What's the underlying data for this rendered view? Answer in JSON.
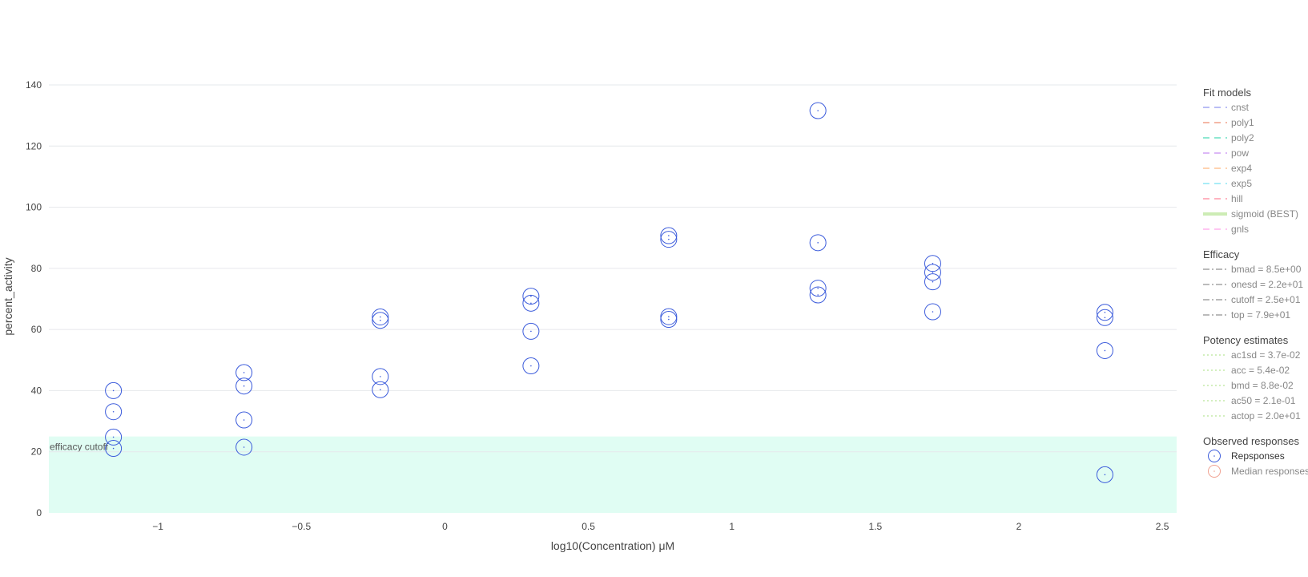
{
  "chart_data": {
    "type": "scatter",
    "xlabel": "log10(Concentration) μM",
    "ylabel": "percent_activity",
    "xlim": [
      -1.38,
      2.55
    ],
    "ylim": [
      0,
      140
    ],
    "x_ticks": [
      {
        "value": -1,
        "label": "−1"
      },
      {
        "value": -0.5,
        "label": "−0.5"
      },
      {
        "value": 0,
        "label": "0"
      },
      {
        "value": 0.5,
        "label": "0.5"
      },
      {
        "value": 1,
        "label": "1"
      },
      {
        "value": 1.5,
        "label": "1.5"
      },
      {
        "value": 2,
        "label": "2"
      },
      {
        "value": 2.5,
        "label": "2.5"
      }
    ],
    "y_ticks": [
      {
        "value": 0,
        "label": "0"
      },
      {
        "value": 20,
        "label": "20"
      },
      {
        "value": 40,
        "label": "40"
      },
      {
        "value": 60,
        "label": "60"
      },
      {
        "value": 80,
        "label": "80"
      },
      {
        "value": 100,
        "label": "100"
      },
      {
        "value": 120,
        "label": "120"
      },
      {
        "value": 140,
        "label": "140"
      }
    ],
    "grid": "horizontal",
    "legend_position": "right",
    "efficacy_cutoff": {
      "value": 25,
      "label": "efficacy cutoff",
      "color": "#e0fdf3"
    },
    "series": [
      {
        "name": "Repsponses",
        "color": "#3b5bdb",
        "x": [
          -1.155,
          -1.155,
          -1.155,
          -1.155,
          -0.7,
          -0.7,
          -0.7,
          -0.7,
          -0.225,
          -0.225,
          -0.225,
          -0.225,
          0.3,
          0.3,
          0.3,
          0.3,
          0.78,
          0.78,
          0.78,
          0.78,
          1.3,
          1.3,
          1.3,
          1.3,
          1.7,
          1.7,
          1.7,
          1.7,
          2.3,
          2.3,
          2.3,
          2.3
        ],
        "y": [
          40.0,
          33.1,
          24.8,
          21.1,
          45.9,
          41.5,
          30.4,
          21.5,
          64.1,
          63.0,
          44.6,
          40.3,
          70.9,
          68.6,
          59.4,
          48.1,
          90.7,
          89.5,
          64.2,
          63.3,
          131.6,
          88.4,
          73.5,
          71.3,
          81.6,
          78.7,
          75.6,
          65.8,
          65.6,
          63.9,
          53.1,
          12.5
        ]
      }
    ],
    "legend_groups": [
      {
        "title": "Fit models",
        "items": [
          {
            "label": "cnst",
            "color": "#b9bdf5",
            "style": "dash"
          },
          {
            "label": "poly1",
            "color": "#f4b7a6",
            "style": "dash"
          },
          {
            "label": "poly2",
            "color": "#8fe8d2",
            "style": "dash"
          },
          {
            "label": "pow",
            "color": "#dcb8f7",
            "style": "dash"
          },
          {
            "label": "exp4",
            "color": "#ffd3b0",
            "style": "dash"
          },
          {
            "label": "exp5",
            "color": "#a9ecf7",
            "style": "dash"
          },
          {
            "label": "hill",
            "color": "#ffb3c0",
            "style": "dash"
          },
          {
            "label": "sigmoid (BEST)",
            "color": "#cdecb5",
            "style": "solid"
          },
          {
            "label": "gnls",
            "color": "#ffc6f2",
            "style": "dash"
          }
        ]
      },
      {
        "title": "Efficacy",
        "items": [
          {
            "label": "bmad = 8.5e+00",
            "color": "#bbbbbb",
            "style": "dashdot"
          },
          {
            "label": "onesd = 2.2e+01",
            "color": "#bbbbbb",
            "style": "dashdot"
          },
          {
            "label": "cutoff = 2.5e+01",
            "color": "#bbbbbb",
            "style": "dashdot"
          },
          {
            "label": "top = 7.9e+01",
            "color": "#bbbbbb",
            "style": "dashdot"
          }
        ]
      },
      {
        "title": "Potency estimates",
        "items": [
          {
            "label": "ac1sd = 3.7e-02",
            "color": "#d3efbf",
            "style": "dot"
          },
          {
            "label": "acc = 5.4e-02",
            "color": "#d3efbf",
            "style": "dot"
          },
          {
            "label": "bmd = 8.8e-02",
            "color": "#d3efbf",
            "style": "dot"
          },
          {
            "label": "ac50 = 2.1e-01",
            "color": "#d3efbf",
            "style": "dot"
          },
          {
            "label": "actop = 2.0e+01",
            "color": "#d3efbf",
            "style": "dot"
          }
        ]
      },
      {
        "title": "Observed responses",
        "items": [
          {
            "label": "Repsponses",
            "color": "#3b5bdb",
            "style": "marker",
            "active": true
          },
          {
            "label": "Median responses",
            "color": "#f0a090",
            "style": "marker",
            "active": false
          }
        ]
      }
    ]
  }
}
